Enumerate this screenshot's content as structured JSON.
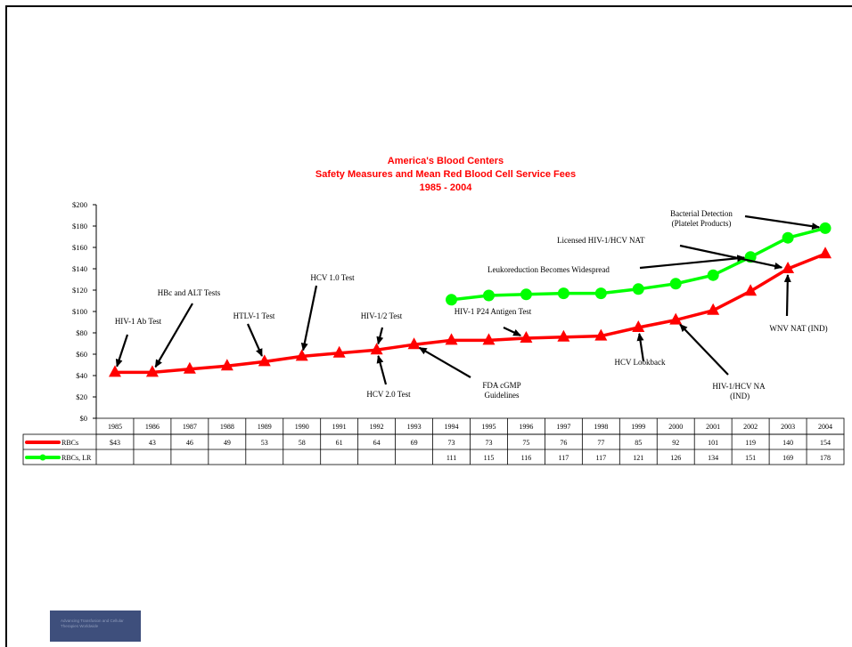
{
  "chart_data": {
    "type": "line",
    "title": "America's Blood Centers",
    "subtitle": "Safety Measures and Mean Red Blood Cell Service Fees",
    "period": "1985 - 2004",
    "categories": [
      "1985",
      "1986",
      "1987",
      "1988",
      "1989",
      "1990",
      "1991",
      "1992",
      "1993",
      "1994",
      "1995",
      "1996",
      "1997",
      "1998",
      "1999",
      "2000",
      "2001",
      "2002",
      "2003",
      "2004"
    ],
    "yticks": [
      "$0",
      "$20",
      "$40",
      "$60",
      "$80",
      "$100",
      "$120",
      "$140",
      "$160",
      "$180",
      "$200"
    ],
    "ylim": [
      0,
      200
    ],
    "series": [
      {
        "name": "RBCs",
        "color": "#ff0000",
        "marker": "triangle",
        "values": [
          43,
          43,
          46,
          49,
          53,
          58,
          61,
          64,
          69,
          73,
          73,
          75,
          76,
          77,
          85,
          92,
          101,
          119,
          140,
          154
        ],
        "table_values": [
          "$43",
          "43",
          "46",
          "49",
          "53",
          "58",
          "61",
          "64",
          "69",
          "73",
          "73",
          "75",
          "76",
          "77",
          "85",
          "92",
          "101",
          "119",
          "140",
          "154"
        ]
      },
      {
        "name": "RBCs, LR",
        "color": "#00ff00",
        "marker": "circle",
        "values": [
          null,
          null,
          null,
          null,
          null,
          null,
          null,
          null,
          null,
          111,
          115,
          116,
          117,
          117,
          121,
          126,
          134,
          151,
          169,
          178
        ],
        "table_values": [
          "",
          "",
          "",
          "",
          "",
          "",
          "",
          "",
          "",
          "111",
          "115",
          "116",
          "117",
          "117",
          "121",
          "126",
          "134",
          "151",
          "169",
          "178"
        ]
      }
    ],
    "annotations": [
      {
        "text": "HIV-1 Ab Test"
      },
      {
        "text": "HBc and ALT Tests"
      },
      {
        "text": "HTLV-1 Test"
      },
      {
        "text": "HCV 1.0 Test"
      },
      {
        "text": "HIV-1/2 Test"
      },
      {
        "text": "HCV 2.0 Test"
      },
      {
        "text": "FDA cGMP Guidelines"
      },
      {
        "text": "HIV-1 P24 Antigen Test"
      },
      {
        "text": "Leukoreduction Becomes Widespread"
      },
      {
        "text": "HCV Lookback"
      },
      {
        "text": "Licensed HIV-1/HCV NAT"
      },
      {
        "text": "HIV-1/HCV NAT (IND)"
      },
      {
        "text": "Bacterial Detection (Platelet Products)"
      },
      {
        "text": "WNV NAT (IND)"
      }
    ]
  },
  "logo": {
    "text": "Advancing Transfusion and Cellular Therapies Worldwide"
  }
}
